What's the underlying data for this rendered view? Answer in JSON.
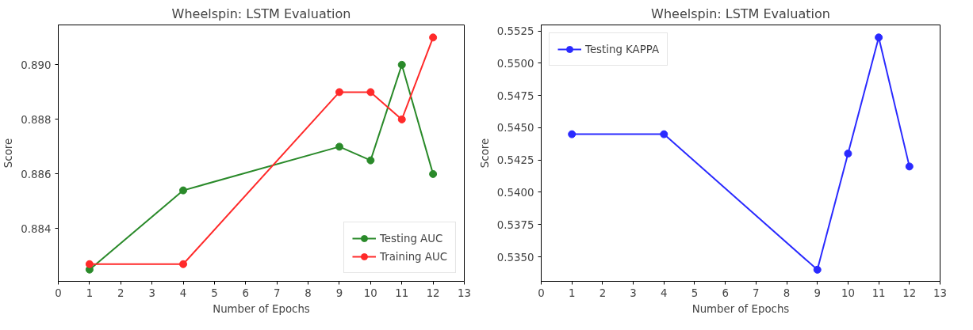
{
  "chart_data": [
    {
      "type": "line",
      "title": "Wheelspin: LSTM Evaluation",
      "xlabel": "Number of Epochs",
      "ylabel": "Score",
      "xlim": [
        0,
        13
      ],
      "xticks": [
        0,
        1,
        2,
        3,
        4,
        5,
        6,
        7,
        8,
        9,
        10,
        11,
        12,
        13
      ],
      "ylim": [
        0.88207,
        0.89146
      ],
      "yticks": [
        0.884,
        0.886,
        0.888,
        {
          "value": 0.89,
          "label": "0.890"
        }
      ],
      "x": [
        1,
        4,
        9,
        10,
        11,
        12
      ],
      "marker": "circle",
      "line_style": "solid",
      "grid": false,
      "legend": "bottom right",
      "series": [
        {
          "name": "Testing AUC",
          "color": "#2a8a2a",
          "values": [
            0.8825,
            0.8854,
            0.887,
            0.8865,
            0.89,
            0.886
          ]
        },
        {
          "name": "Training AUC",
          "color": "#ff2a2a",
          "values": [
            0.8827,
            0.8827,
            0.889,
            0.889,
            0.888,
            0.891
          ]
        }
      ]
    },
    {
      "type": "line",
      "title": "Wheelspin: LSTM Evaluation",
      "xlabel": "Number of Epochs",
      "ylabel": "Score",
      "xlim": [
        0,
        13
      ],
      "xticks": [
        0,
        1,
        2,
        3,
        4,
        5,
        6,
        7,
        8,
        9,
        10,
        11,
        12,
        13
      ],
      "ylim": [
        0.5331,
        0.55297
      ],
      "yticks": [
        {
          "value": 0.535,
          "label": "0.5350"
        },
        0.5375,
        {
          "value": 0.54,
          "label": "0.5400"
        },
        0.5425,
        {
          "value": 0.545,
          "label": "0.5450"
        },
        0.5475,
        {
          "value": 0.55,
          "label": "0.5500"
        },
        0.5525
      ],
      "x": [
        1,
        4,
        9,
        10,
        11,
        12
      ],
      "marker": "circle",
      "line_style": "solid",
      "grid": false,
      "legend": "top left",
      "series": [
        {
          "name": "Testing KAPPA",
          "color": "#2a2aff",
          "values": [
            0.5445,
            0.5445,
            0.534,
            0.543,
            0.552,
            0.542
          ]
        }
      ]
    }
  ]
}
